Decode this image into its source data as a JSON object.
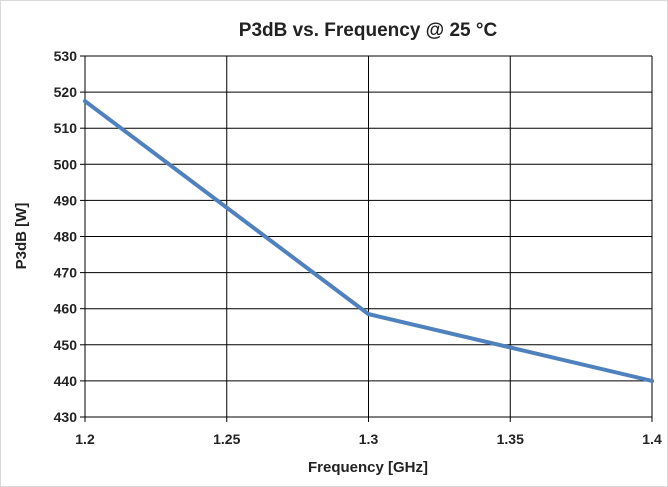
{
  "chart_data": {
    "type": "line",
    "title": "P3dB vs. Frequency @ 25 °C",
    "xlabel": "Frequency [GHz]",
    "ylabel": "P3dB [W]",
    "xlim": [
      1.2,
      1.4
    ],
    "ylim": [
      430,
      530
    ],
    "x_ticks": [
      "1.2",
      "1.25",
      "1.3",
      "1.35",
      "1.4"
    ],
    "y_ticks": [
      "430",
      "440",
      "450",
      "460",
      "470",
      "480",
      "490",
      "500",
      "510",
      "520",
      "530"
    ],
    "grid": true,
    "series": [
      {
        "color": "#4f81bd",
        "x": [
          1.2,
          1.3,
          1.4
        ],
        "y": [
          517.5,
          458.5,
          440
        ]
      }
    ]
  }
}
